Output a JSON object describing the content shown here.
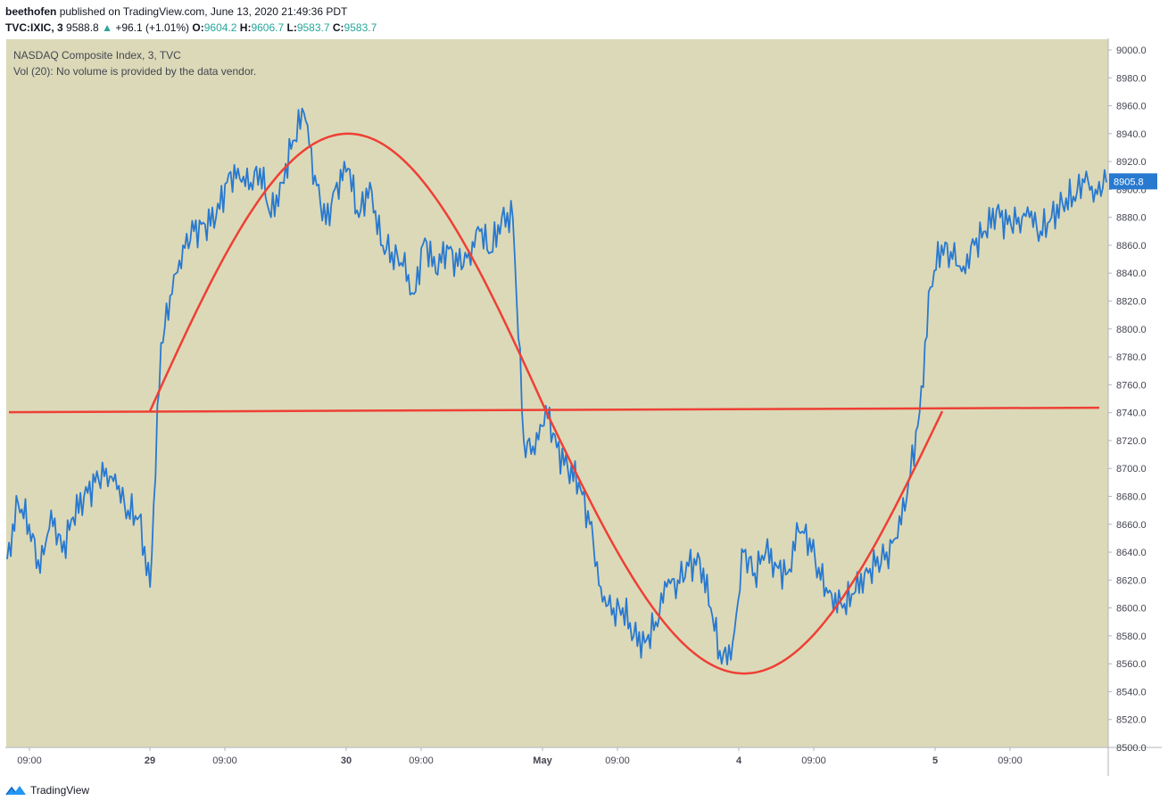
{
  "header": {
    "author": "beethofen",
    "published": "published on TradingView.com, June 13, 2020 21:49:36 PDT",
    "symbol": "TVC:IXIC, 3",
    "price": "9588.8",
    "change": "+96.1 (+1.01%)",
    "o_label": "O:",
    "o_val": "9604.2",
    "h_label": "H:",
    "h_val": "9606.7",
    "l_label": "L:",
    "l_val": "9583.7",
    "c_label": "C:",
    "c_val": "9583.7",
    "arrow_icon": "triangle-up-icon"
  },
  "legend": {
    "title": "NASDAQ Composite Index, 3, TVC",
    "volume": "Vol (20): No volume is provided by the data vendor."
  },
  "footer": {
    "brand": "TradingView",
    "icon": "tradingview-logo-icon"
  },
  "colors": {
    "background": "#dcd9b8",
    "series": "#2879d0",
    "annotation": "#ee4035",
    "price_badge": "#2879d0"
  },
  "chart_data": {
    "type": "line",
    "title": "",
    "ylim": [
      8500,
      9000
    ],
    "y_ticks": [
      "9000.0",
      "8980.0",
      "8960.0",
      "8940.0",
      "8920.0",
      "8900.0",
      "8880.0",
      "8860.0",
      "8840.0",
      "8820.0",
      "8800.0",
      "8780.0",
      "8760.0",
      "8740.0",
      "8720.0",
      "8700.0",
      "8680.0",
      "8660.0",
      "8640.0",
      "8620.0",
      "8600.0",
      "8580.0",
      "8560.0",
      "8540.0",
      "8520.0",
      "8500.0"
    ],
    "x_ticks": [
      "09:00",
      "29",
      "09:00",
      "30",
      "09:00",
      "May",
      "09:00",
      "4",
      "09:00",
      "5",
      "09:00"
    ],
    "last_price_label": "8905.8",
    "series": [
      {
        "name": "",
        "x": [
          0,
          2,
          4,
          6,
          8,
          10,
          12,
          14,
          16,
          18,
          20,
          22,
          24,
          26,
          28,
          30,
          32,
          34,
          36,
          38,
          40,
          42,
          44,
          46,
          48,
          50,
          52,
          54,
          56,
          58,
          60,
          62,
          64,
          66,
          68,
          70,
          72,
          74,
          76,
          78,
          80,
          82,
          84,
          86,
          88,
          90,
          92,
          94,
          96,
          98,
          100,
          102,
          104,
          106,
          108,
          110,
          112,
          114,
          116,
          118,
          120,
          122,
          124,
          126,
          128,
          130,
          132,
          134,
          136,
          138,
          140,
          142,
          144,
          146,
          148,
          150,
          152,
          154,
          156,
          158,
          160,
          162,
          164,
          166,
          168,
          170,
          172,
          174,
          176,
          178,
          180,
          182,
          184,
          186,
          188,
          190,
          192,
          194,
          196,
          198,
          200
        ],
        "y": [
          8635,
          8675,
          8660,
          8625,
          8670,
          8640,
          8665,
          8680,
          8690,
          8700,
          8685,
          8670,
          8665,
          8615,
          8790,
          8825,
          8860,
          8870,
          8875,
          8880,
          8905,
          8915,
          8900,
          8915,
          8880,
          8905,
          8935,
          8955,
          8910,
          8875,
          8905,
          8915,
          8880,
          8905,
          8860,
          8855,
          8845,
          8825,
          8865,
          8840,
          8860,
          8845,
          8855,
          8870,
          8855,
          8880,
          8880,
          8720,
          8710,
          8745,
          8715,
          8700,
          8690,
          8660,
          8615,
          8595,
          8600,
          8580,
          8575,
          8590,
          8615,
          8620,
          8630,
          8635,
          8600,
          8560,
          8575,
          8640,
          8625,
          8640,
          8630,
          8625,
          8655,
          8650,
          8620,
          8610,
          8600,
          8610,
          8625,
          8630,
          8640,
          8650,
          8690,
          8740,
          8830,
          8860,
          8850,
          8845,
          8860,
          8870,
          8885,
          8875,
          8880,
          8880,
          8870,
          8880,
          8890,
          8895,
          8905,
          8900,
          8905
        ]
      },
      {
        "name": "",
        "type": "sine-overlay"
      }
    ],
    "horizontal_line": 8741,
    "grid": false
  }
}
